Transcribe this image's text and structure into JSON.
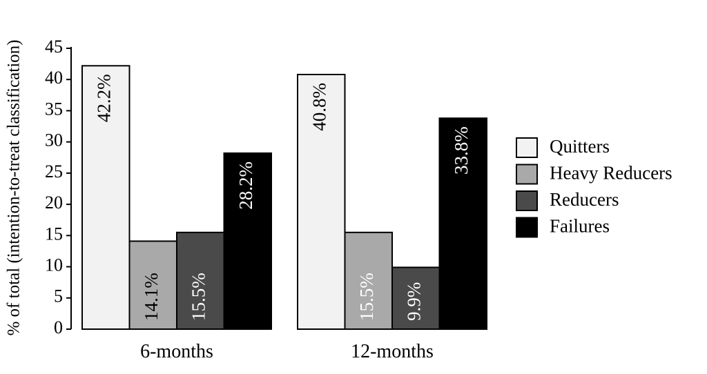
{
  "chart_data": {
    "type": "bar",
    "ylabel": "% of total (intention-to-treat classification)",
    "ylim": [
      0,
      45
    ],
    "yticks": [
      0,
      5,
      10,
      15,
      20,
      25,
      30,
      35,
      40,
      45
    ],
    "categories": [
      "6-months",
      "12-months"
    ],
    "series": [
      {
        "name": "Quitters",
        "values": [
          42.2,
          40.8
        ],
        "labels": [
          "42.2%",
          "40.8%"
        ],
        "color": "#f2f2f2",
        "label_color": "#000000"
      },
      {
        "name": "Heavy Reducers",
        "values": [
          14.1,
          15.5
        ],
        "labels": [
          "14.1%",
          "15.5%"
        ],
        "color": "#a9a9a9",
        "label_color": "#000000|#ffffff"
      },
      {
        "name": "Reducers",
        "values": [
          15.5,
          9.9
        ],
        "labels": [
          "15.5%",
          "9.9%"
        ],
        "color": "#4a4a4a",
        "label_color": "#ffffff"
      },
      {
        "name": "Failures",
        "values": [
          28.2,
          33.8
        ],
        "labels": [
          "28.2%",
          "33.8%"
        ],
        "color": "#000000",
        "label_color": "#ffffff"
      }
    ],
    "legend_position": "right",
    "grid": false
  }
}
